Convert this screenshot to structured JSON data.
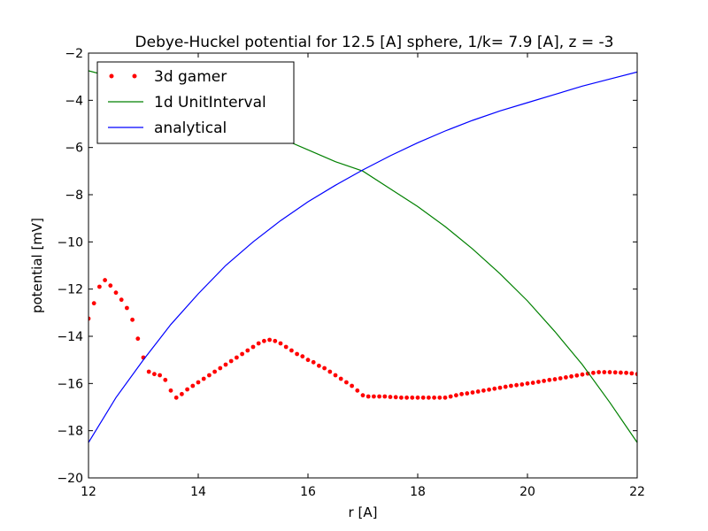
{
  "chart_data": {
    "type": "line",
    "title": "Debye-Huckel potential for 12.5 [A] sphere, 1/k=  7.9 [A], z = -3",
    "xlabel": "r [A]",
    "ylabel": "potential [mV]",
    "xlim": [
      12,
      22
    ],
    "ylim": [
      -20,
      -2
    ],
    "x_ticks": [
      12,
      14,
      16,
      18,
      20,
      22
    ],
    "y_ticks": [
      -20,
      -18,
      -16,
      -14,
      -12,
      -10,
      -8,
      -6,
      -4,
      -2
    ],
    "x_tick_labels": [
      "12",
      "14",
      "16",
      "18",
      "20",
      "22"
    ],
    "y_tick_labels": [
      "−20",
      "−18",
      "−16",
      "−14",
      "−12",
      "−10",
      "−8",
      "−6",
      "−4",
      "−2"
    ],
    "grid": false,
    "legend_position": "top-left",
    "series": [
      {
        "name": "3d gamer",
        "style": "dots",
        "color": "#ff0000",
        "x": [
          12.0,
          12.1,
          12.2,
          12.3,
          12.4,
          12.5,
          12.6,
          12.7,
          12.8,
          12.9,
          13.0,
          13.1,
          13.2,
          13.3,
          13.4,
          13.5,
          13.6,
          13.7,
          13.8,
          13.9,
          14.0,
          14.1,
          14.2,
          14.3,
          14.4,
          14.5,
          14.6,
          14.7,
          14.8,
          14.9,
          15.0,
          15.1,
          15.2,
          15.3,
          15.4,
          15.5,
          15.6,
          15.7,
          15.8,
          15.9,
          16.0,
          16.1,
          16.2,
          16.3,
          16.4,
          16.5,
          16.6,
          16.7,
          16.8,
          16.9,
          17.0,
          17.1,
          17.2,
          17.3,
          17.4,
          17.5,
          17.6,
          17.7,
          17.8,
          17.9,
          18.0,
          18.1,
          18.2,
          18.3,
          18.4,
          18.5,
          18.6,
          18.7,
          18.8,
          18.9,
          19.0,
          19.1,
          19.2,
          19.3,
          19.4,
          19.5,
          19.6,
          19.7,
          19.8,
          19.9,
          20.0,
          20.1,
          20.2,
          20.3,
          20.4,
          20.5,
          20.6,
          20.7,
          20.8,
          20.9,
          21.0,
          21.1,
          21.2,
          21.3,
          21.4,
          21.5,
          21.6,
          21.7,
          21.8,
          21.9,
          22.0
        ],
        "y": [
          -13.25,
          -12.6,
          -11.9,
          -11.62,
          -11.85,
          -12.15,
          -12.45,
          -12.8,
          -13.3,
          -14.1,
          -14.9,
          -15.5,
          -15.6,
          -15.65,
          -15.85,
          -16.3,
          -16.6,
          -16.45,
          -16.25,
          -16.1,
          -15.95,
          -15.8,
          -15.65,
          -15.5,
          -15.35,
          -15.2,
          -15.05,
          -14.9,
          -14.75,
          -14.6,
          -14.45,
          -14.3,
          -14.2,
          -14.15,
          -14.2,
          -14.3,
          -14.45,
          -14.6,
          -14.75,
          -14.85,
          -15.0,
          -15.1,
          -15.25,
          -15.35,
          -15.5,
          -15.65,
          -15.8,
          -15.95,
          -16.1,
          -16.3,
          -16.5,
          -16.55,
          -16.55,
          -16.55,
          -16.55,
          -16.57,
          -16.58,
          -16.6,
          -16.6,
          -16.6,
          -16.6,
          -16.6,
          -16.6,
          -16.6,
          -16.6,
          -16.6,
          -16.55,
          -16.5,
          -16.45,
          -16.42,
          -16.38,
          -16.34,
          -16.3,
          -16.26,
          -16.22,
          -16.18,
          -16.14,
          -16.1,
          -16.07,
          -16.04,
          -16.0,
          -15.97,
          -15.93,
          -15.89,
          -15.85,
          -15.82,
          -15.78,
          -15.74,
          -15.7,
          -15.66,
          -15.62,
          -15.58,
          -15.55,
          -15.52,
          -15.52,
          -15.52,
          -15.53,
          -15.54,
          -15.55,
          -15.57,
          -15.6
        ]
      },
      {
        "name": "1d UnitInterval",
        "style": "line",
        "color": "#008000",
        "x": [
          12.0,
          12.5,
          13.0,
          13.5,
          14.0,
          14.5,
          15.0,
          15.5,
          16.0,
          16.5,
          17.0,
          17.5,
          18.0,
          18.5,
          19.0,
          19.5,
          20.0,
          20.5,
          21.0,
          21.5,
          22.0
        ],
        "y": [
          -2.75,
          -3.05,
          -3.4,
          -3.8,
          -4.2,
          -4.65,
          -5.1,
          -5.6,
          -6.1,
          -6.6,
          -7.0,
          -7.75,
          -8.5,
          -9.35,
          -10.3,
          -11.35,
          -12.5,
          -13.8,
          -15.2,
          -16.8,
          -18.5
        ]
      },
      {
        "name": "analytical",
        "style": "line",
        "color": "#0000ff",
        "x": [
          12.0,
          12.5,
          13.0,
          13.5,
          14.0,
          14.5,
          15.0,
          15.5,
          16.0,
          16.5,
          17.0,
          17.5,
          18.0,
          18.5,
          19.0,
          19.5,
          20.0,
          20.5,
          21.0,
          21.5,
          22.0
        ],
        "y": [
          -18.5,
          -16.6,
          -15.0,
          -13.5,
          -12.2,
          -11.0,
          -10.0,
          -9.1,
          -8.3,
          -7.6,
          -6.95,
          -6.35,
          -5.8,
          -5.3,
          -4.85,
          -4.45,
          -4.1,
          -3.75,
          -3.4,
          -3.1,
          -2.8
        ]
      }
    ]
  }
}
